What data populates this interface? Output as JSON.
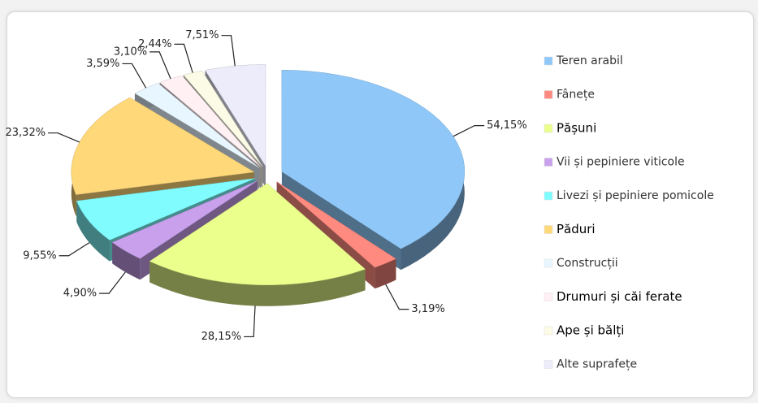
{
  "chart_data": {
    "type": "pie3d",
    "categories": [
      "Teren arabil",
      "Fânețe",
      "Pășuni",
      "Vii și pepiniere viticole",
      "Livezi și pepiniere pomicole",
      "Păduri",
      "Construcții",
      "Drumuri și căi ferate",
      "Ape și bălți",
      "Alte suprafețe"
    ],
    "values": [
      54.15,
      3.19,
      28.15,
      4.9,
      9.55,
      23.32,
      3.59,
      3.1,
      2.44,
      7.51
    ],
    "value_labels": [
      "54,15%",
      "3,19%",
      "28,15%",
      "4,90%",
      "9,55%",
      "23,32%",
      "3,59%",
      "3,10%",
      "2,44%",
      "7,51%"
    ],
    "colors": [
      "#8fc8f8",
      "#ff8a80",
      "#eaff8c",
      "#c8a0ec",
      "#80fcff",
      "#ffd87a",
      "#e8f6ff",
      "#fff0f4",
      "#fbfbe6",
      "#ececfa"
    ],
    "legend": "right"
  }
}
